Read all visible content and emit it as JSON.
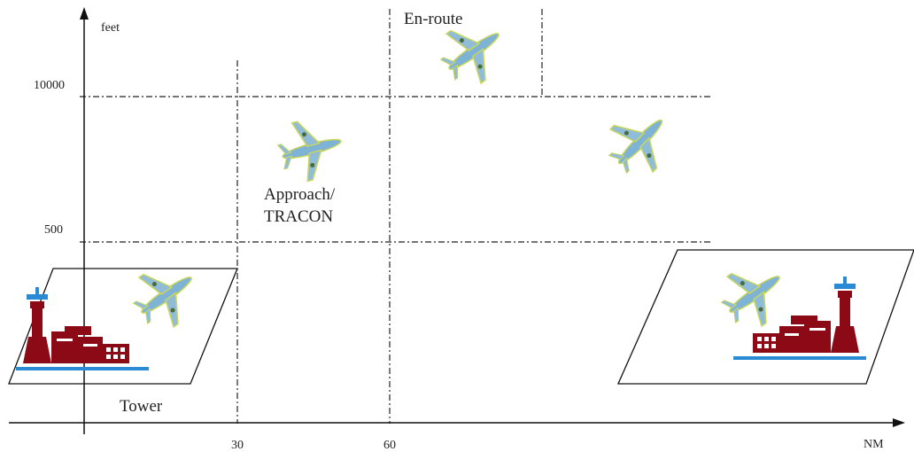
{
  "axes": {
    "y_label": "feet",
    "x_label": "NM",
    "y_ticks": [
      "10000",
      "500"
    ],
    "x_ticks": [
      "30",
      "60"
    ]
  },
  "regions": {
    "enroute": "En-route",
    "approach": [
      "Approach/",
      "TRACON"
    ],
    "tower": "Tower"
  }
}
